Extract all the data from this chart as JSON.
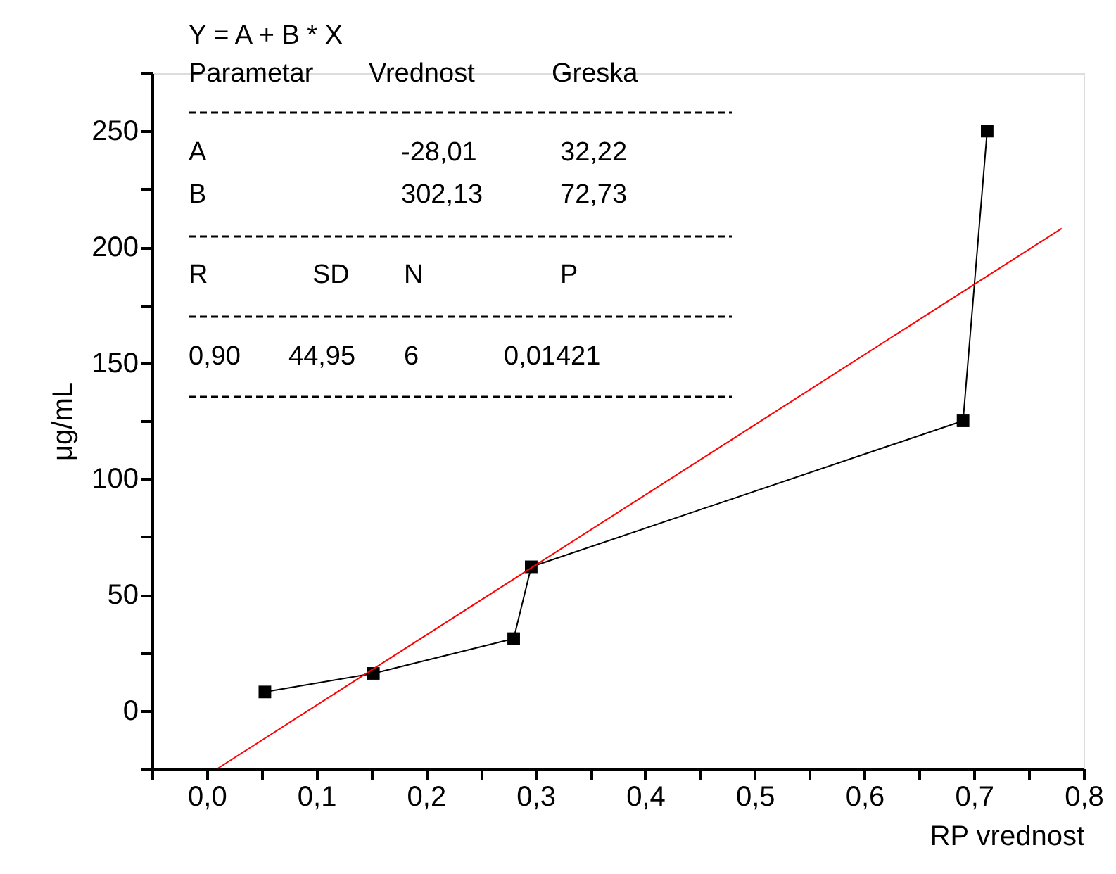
{
  "chart_data": {
    "type": "line",
    "xlabel": "RP vrednost",
    "ylabel": "μg/mL",
    "x": [
      0.053,
      0.152,
      0.28,
      0.296,
      0.69,
      0.712
    ],
    "series": [
      {
        "marker": "square",
        "color": "#000000",
        "values": [
          8,
          16,
          31,
          62,
          125,
          250
        ]
      },
      {
        "marker": "none",
        "color": "#ff0000",
        "x": [
          0.01,
          0.78
        ],
        "values": [
          -25,
          208
        ]
      }
    ],
    "xlim": [
      -0.05,
      0.8
    ],
    "xticks": [
      {
        "value": -0.05,
        "label": null
      },
      {
        "value": 0,
        "label": "0,0"
      },
      {
        "value": 0.05,
        "label": null
      },
      {
        "value": 0.1,
        "label": "0,1"
      },
      {
        "value": 0.15,
        "label": null
      },
      {
        "value": 0.2,
        "label": "0,2"
      },
      {
        "value": 0.25,
        "label": null
      },
      {
        "value": 0.3,
        "label": "0,3"
      },
      {
        "value": 0.35,
        "label": null
      },
      {
        "value": 0.4,
        "label": "0,4"
      },
      {
        "value": 0.45,
        "label": null
      },
      {
        "value": 0.5,
        "label": "0,5"
      },
      {
        "value": 0.55,
        "label": null
      },
      {
        "value": 0.6,
        "label": "0,6"
      },
      {
        "value": 0.65,
        "label": null
      },
      {
        "value": 0.7,
        "label": "0,7"
      },
      {
        "value": 0.75,
        "label": null
      },
      {
        "value": 0.8,
        "label": "0,8"
      }
    ],
    "ylim": [
      -25,
      275
    ],
    "yticks": [
      {
        "value": -25,
        "label": null
      },
      0,
      {
        "value": 25,
        "label": null
      },
      50,
      {
        "value": 75,
        "label": null
      },
      100,
      {
        "value": 125,
        "label": null
      },
      150,
      {
        "value": 175,
        "label": null
      },
      200,
      {
        "value": 225,
        "label": null
      },
      250,
      {
        "value": 275,
        "label": null
      }
    ],
    "grid": false,
    "annotations": [
      "Y = A + B * X",
      "Parametar",
      "Vrednost",
      "Greska",
      "A",
      "-28,01",
      "32,22",
      "B",
      "302,13",
      "72,73",
      "R",
      "SD",
      "N",
      "P",
      "0,90",
      "44,95",
      "6",
      "0,01421"
    ]
  }
}
